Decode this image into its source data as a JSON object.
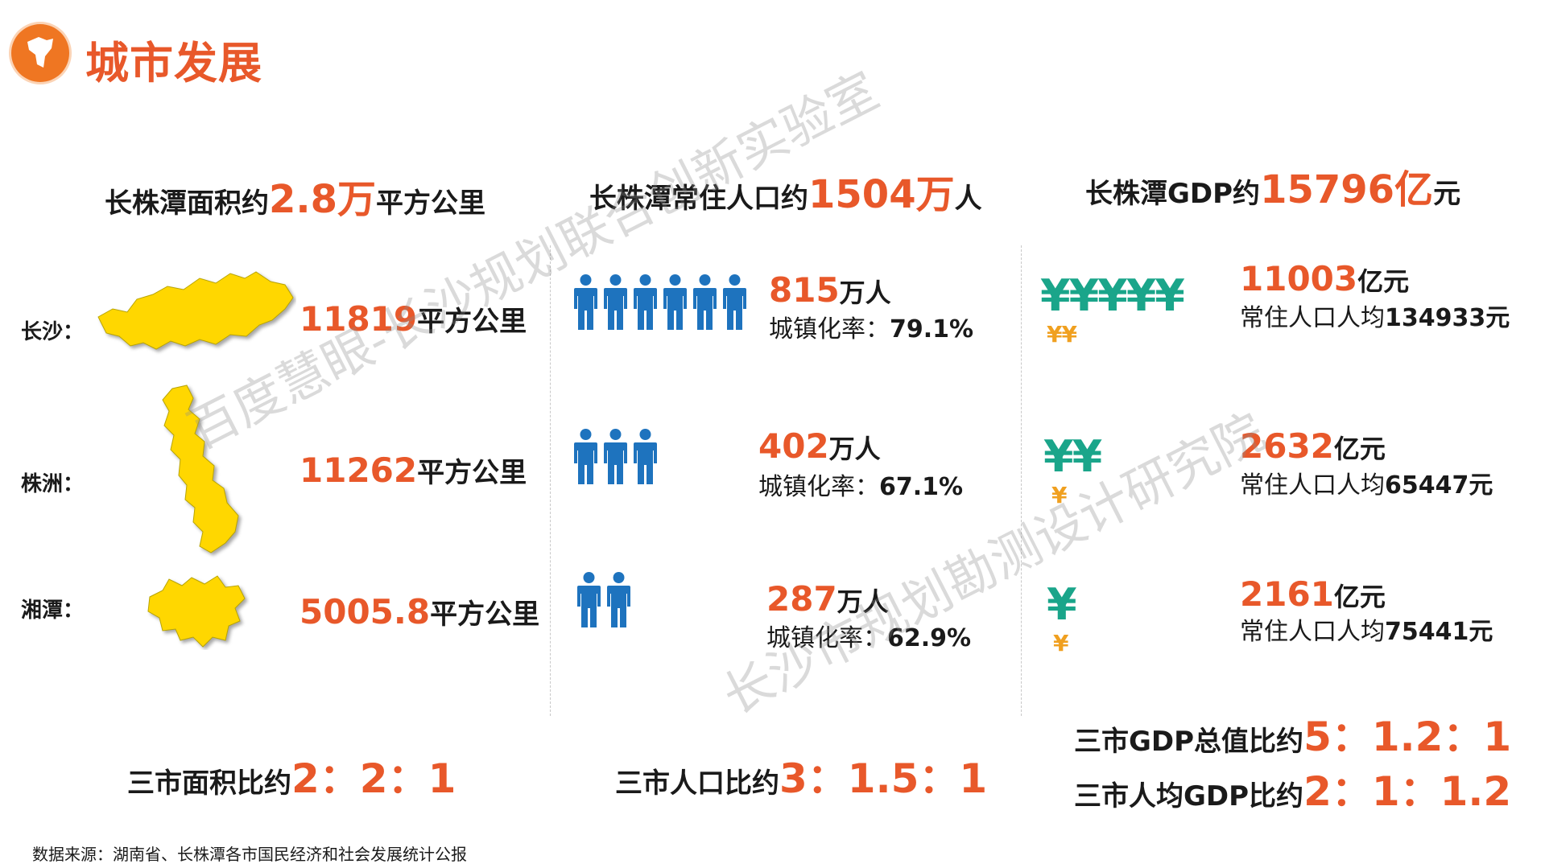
{
  "header": {
    "title": "城市发展"
  },
  "area": {
    "heading": {
      "prefix": "长株潭面积约",
      "number": "2.8万",
      "suffix": "平方公里"
    },
    "cities": [
      {
        "label": "长沙：",
        "number": "11819",
        "unit": "平方公里"
      },
      {
        "label": "株洲：",
        "number": "11262",
        "unit": "平方公里"
      },
      {
        "label": "湘潭：",
        "number": "5005.8",
        "unit": "平方公里"
      }
    ],
    "ratio": {
      "prefix": "三市面积比约",
      "value": "2：2：1"
    }
  },
  "population": {
    "heading": {
      "prefix": "长株潭常住人口约",
      "number": "1504万",
      "suffix": "人"
    },
    "cities": [
      {
        "number": "815",
        "unit": "万人",
        "rate_label": "城镇化率：",
        "rate": "79.1%",
        "icon_count": 6
      },
      {
        "number": "402",
        "unit": "万人",
        "rate_label": "城镇化率：",
        "rate": "67.1%",
        "icon_count": 3
      },
      {
        "number": "287",
        "unit": "万人",
        "rate_label": "城镇化率：",
        "rate": "62.9%",
        "icon_count": 2
      }
    ],
    "ratio": {
      "prefix": "三市人口比约",
      "value": "3：1.5：1"
    }
  },
  "gdp": {
    "heading": {
      "prefix": "长株潭GDP约",
      "number": "15796亿",
      "suffix": "元"
    },
    "cities": [
      {
        "number": "11003",
        "unit": "亿元",
        "percap_label": "常住人口人均",
        "percap": "134933元",
        "yen_big": "¥¥¥¥¥",
        "yen_small": "¥¥"
      },
      {
        "number": "2632",
        "unit": "亿元",
        "percap_label": "常住人口人均",
        "percap": "65447元",
        "yen_big": "¥¥",
        "yen_small": "¥"
      },
      {
        "number": "2161",
        "unit": "亿元",
        "percap_label": "常住人口人均",
        "percap": "75441元",
        "yen_big": "¥",
        "yen_small": "¥"
      }
    ],
    "ratio_total": {
      "prefix": "三市GDP总值比约",
      "value": "5：1.2：1"
    },
    "ratio_percap": {
      "prefix": "三市人均GDP比约",
      "value": "2：1：1.2"
    }
  },
  "source": "数据来源：湖南省、长株潭各市国民经济和社会发展统计公报",
  "watermarks": [
    "百度慧眼-长沙规划联合创新实验室",
    "长沙市规划勘测设计研究院"
  ],
  "colors": {
    "accent": "#e8582a",
    "map_fill": "#ffd700",
    "people": "#1e73be",
    "yen_green": "#1aa58a",
    "yen_gold": "#f0a020"
  }
}
